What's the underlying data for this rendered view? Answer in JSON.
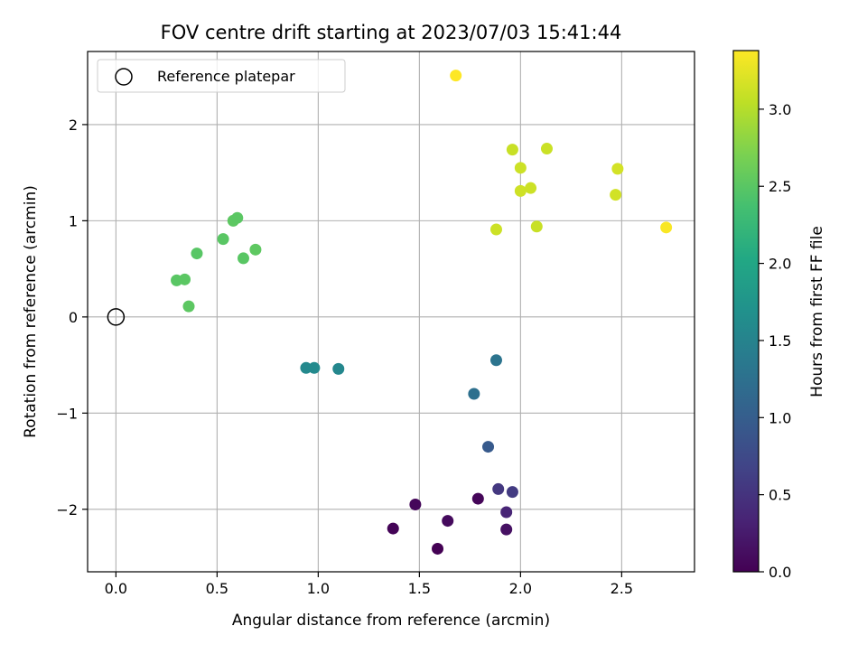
{
  "chart_data": {
    "type": "scatter",
    "title": "FOV centre drift starting at 2023/07/03 15:41:44",
    "xlabel": "Angular distance from reference (arcmin)",
    "ylabel": "Rotation from reference (arcmin)",
    "xlim": [
      -0.14,
      2.86
    ],
    "ylim": [
      -2.65,
      2.76
    ],
    "xticks": [
      0.0,
      0.5,
      1.0,
      1.5,
      2.0,
      2.5
    ],
    "xtick_labels": [
      "0.0",
      "0.5",
      "1.0",
      "1.5",
      "2.0",
      "2.5"
    ],
    "yticks": [
      -2,
      -1,
      0,
      1,
      2
    ],
    "ytick_labels": [
      "−2",
      "−1",
      "0",
      "1",
      "2"
    ],
    "grid": true,
    "legend": {
      "placement": "top-left",
      "entries": [
        "Reference platepar"
      ]
    },
    "reference_point": {
      "x": 0.0,
      "y": 0.0,
      "label": "Reference platepar"
    },
    "colorbar": {
      "label": "Hours from first FF file",
      "colormap": "viridis",
      "range": [
        0.0,
        3.38
      ],
      "ticks": [
        0.0,
        0.5,
        1.0,
        1.5,
        2.0,
        2.5,
        3.0
      ],
      "tick_labels": [
        "0.0",
        "0.5",
        "1.0",
        "1.5",
        "2.0",
        "2.5",
        "3.0"
      ]
    },
    "points": [
      {
        "x": 1.59,
        "y": -2.41,
        "c": 0.0
      },
      {
        "x": 1.37,
        "y": -2.2,
        "c": 0.03
      },
      {
        "x": 1.48,
        "y": -1.95,
        "c": 0.06
      },
      {
        "x": 1.64,
        "y": -2.12,
        "c": 0.09
      },
      {
        "x": 1.79,
        "y": -1.89,
        "c": 0.05
      },
      {
        "x": 1.93,
        "y": -2.21,
        "c": 0.15
      },
      {
        "x": 1.93,
        "y": -2.03,
        "c": 0.35
      },
      {
        "x": 1.89,
        "y": -1.79,
        "c": 0.55
      },
      {
        "x": 1.96,
        "y": -1.82,
        "c": 0.58
      },
      {
        "x": 1.84,
        "y": -1.35,
        "c": 0.95
      },
      {
        "x": 1.77,
        "y": -0.8,
        "c": 1.25
      },
      {
        "x": 1.88,
        "y": -0.45,
        "c": 1.3
      },
      {
        "x": 0.94,
        "y": -0.53,
        "c": 1.58
      },
      {
        "x": 0.98,
        "y": -0.53,
        "c": 1.6
      },
      {
        "x": 1.1,
        "y": -0.54,
        "c": 1.56
      },
      {
        "x": 0.36,
        "y": 0.11,
        "c": 2.52
      },
      {
        "x": 0.3,
        "y": 0.38,
        "c": 2.5
      },
      {
        "x": 0.34,
        "y": 0.39,
        "c": 2.51
      },
      {
        "x": 0.4,
        "y": 0.66,
        "c": 2.49
      },
      {
        "x": 0.53,
        "y": 0.81,
        "c": 2.5
      },
      {
        "x": 0.58,
        "y": 1.0,
        "c": 2.52
      },
      {
        "x": 0.6,
        "y": 1.03,
        "c": 2.51
      },
      {
        "x": 0.63,
        "y": 0.61,
        "c": 2.5
      },
      {
        "x": 0.69,
        "y": 0.7,
        "c": 2.53
      },
      {
        "x": 1.88,
        "y": 0.91,
        "c": 3.12
      },
      {
        "x": 2.08,
        "y": 0.94,
        "c": 3.1
      },
      {
        "x": 1.96,
        "y": 1.74,
        "c": 3.1
      },
      {
        "x": 2.13,
        "y": 1.75,
        "c": 3.11
      },
      {
        "x": 2.0,
        "y": 1.55,
        "c": 3.12
      },
      {
        "x": 2.0,
        "y": 1.31,
        "c": 3.13
      },
      {
        "x": 2.05,
        "y": 1.34,
        "c": 3.12
      },
      {
        "x": 2.47,
        "y": 1.27,
        "c": 3.15
      },
      {
        "x": 2.48,
        "y": 1.54,
        "c": 3.16
      },
      {
        "x": 1.68,
        "y": 2.51,
        "c": 3.38
      },
      {
        "x": 2.72,
        "y": 0.93,
        "c": 3.36
      }
    ]
  }
}
